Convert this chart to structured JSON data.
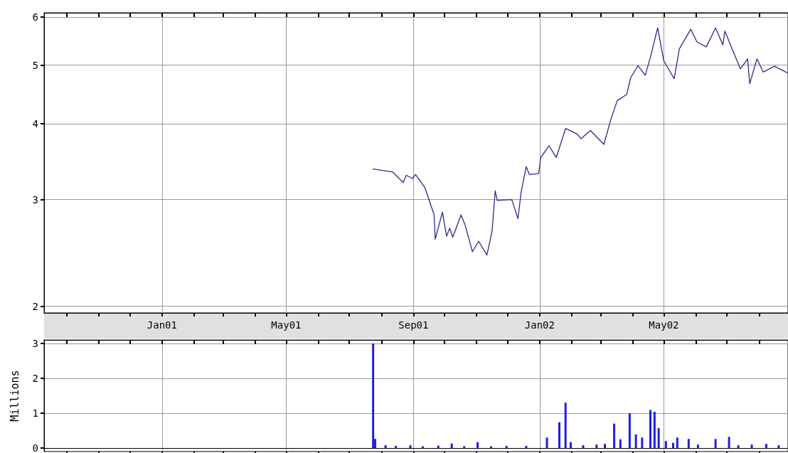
{
  "chart_data": [
    {
      "type": "line",
      "log": true,
      "grid": true,
      "marker": "none",
      "line_style": "solid",
      "xlim": [
        "2000-09-09",
        "2002-08-29"
      ],
      "ylim": [
        1.95,
        6.1
      ],
      "yticks": [
        2,
        3,
        4,
        5,
        6
      ],
      "xticks": [
        {
          "value": "2000-10-01",
          "label": null
        },
        {
          "value": "2000-11-01",
          "label": null
        },
        {
          "value": "2000-12-01",
          "label": null
        },
        {
          "value": "2001-01-01",
          "label": "Jan01"
        },
        {
          "value": "2001-02-01",
          "label": null
        },
        {
          "value": "2001-03-01",
          "label": null
        },
        {
          "value": "2001-04-01",
          "label": null
        },
        {
          "value": "2001-05-01",
          "label": "May01"
        },
        {
          "value": "2001-06-01",
          "label": null
        },
        {
          "value": "2001-07-01",
          "label": null
        },
        {
          "value": "2001-08-01",
          "label": null
        },
        {
          "value": "2001-09-01",
          "label": "Sep01"
        },
        {
          "value": "2001-10-01",
          "label": null
        },
        {
          "value": "2001-11-01",
          "label": null
        },
        {
          "value": "2001-12-01",
          "label": null
        },
        {
          "value": "2002-01-01",
          "label": "Jan02"
        },
        {
          "value": "2002-02-01",
          "label": null
        },
        {
          "value": "2002-03-01",
          "label": null
        },
        {
          "value": "2002-04-01",
          "label": null
        },
        {
          "value": "2002-05-01",
          "label": "May02"
        },
        {
          "value": "2002-06-01",
          "label": null
        },
        {
          "value": "2002-07-01",
          "label": null
        },
        {
          "value": "2002-08-01",
          "label": null
        }
      ],
      "x": [
        "2001-07-24",
        "2001-08-12",
        "2001-08-22",
        "2001-08-25",
        "2001-08-31",
        "2001-09-03",
        "2001-09-12",
        "2001-09-21",
        "2001-09-22",
        "2001-09-29",
        "2001-10-03",
        "2001-10-06",
        "2001-10-09",
        "2001-10-17",
        "2001-10-21",
        "2001-10-28",
        "2001-11-03",
        "2001-11-11",
        "2001-11-16",
        "2001-11-19",
        "2001-11-21",
        "2001-12-05",
        "2001-12-11",
        "2001-12-14",
        "2001-12-19",
        "2001-12-22",
        "2001-12-31",
        "2002-01-02",
        "2002-01-10",
        "2002-01-17",
        "2002-01-26",
        "2002-02-06",
        "2002-02-10",
        "2002-02-19",
        "2002-03-04",
        "2002-03-11",
        "2002-03-17",
        "2002-03-26",
        "2002-03-30",
        "2002-04-06",
        "2002-04-13",
        "2002-04-18",
        "2002-04-25",
        "2002-05-01",
        "2002-05-11",
        "2002-05-16",
        "2002-05-27",
        "2002-06-02",
        "2002-06-11",
        "2002-06-20",
        "2002-06-27",
        "2002-06-29",
        "2002-07-08",
        "2002-07-14",
        "2002-07-21",
        "2002-07-23",
        "2002-07-30",
        "2002-08-05",
        "2002-08-16",
        "2002-08-28"
      ],
      "series": [
        {
          "color": "#2b2b8c",
          "values": [
            3.37,
            3.33,
            3.2,
            3.29,
            3.25,
            3.3,
            3.14,
            2.83,
            2.58,
            2.86,
            2.61,
            2.69,
            2.6,
            2.83,
            2.72,
            2.46,
            2.56,
            2.43,
            2.66,
            3.1,
            2.99,
            3.0,
            2.79,
            3.08,
            3.4,
            3.3,
            3.31,
            3.52,
            3.68,
            3.52,
            3.93,
            3.85,
            3.78,
            3.9,
            3.7,
            4.08,
            4.37,
            4.47,
            4.77,
            4.99,
            4.81,
            5.15,
            5.76,
            5.08,
            4.75,
            5.32,
            5.73,
            5.46,
            5.36,
            5.76,
            5.4,
            5.69,
            5.22,
            4.93,
            5.12,
            4.66,
            5.12,
            4.87,
            4.98,
            4.86
          ]
        }
      ]
    },
    {
      "type": "bar",
      "grid": true,
      "tick_labels": "y",
      "ylabel": "Millions",
      "xlim": [
        "2000-09-09",
        "2002-08-29"
      ],
      "ylim": [
        -0.1,
        3.1
      ],
      "yticks": [
        0,
        1,
        2,
        3
      ],
      "xticks": [
        {
          "value": "2000-10-01",
          "label": null
        },
        {
          "value": "2000-11-01",
          "label": null
        },
        {
          "value": "2000-12-01",
          "label": null
        },
        {
          "value": "2001-01-01",
          "label": null
        },
        {
          "value": "2001-02-01",
          "label": null
        },
        {
          "value": "2001-03-01",
          "label": null
        },
        {
          "value": "2001-04-01",
          "label": null
        },
        {
          "value": "2001-05-01",
          "label": null
        },
        {
          "value": "2001-06-01",
          "label": null
        },
        {
          "value": "2001-07-01",
          "label": null
        },
        {
          "value": "2001-08-01",
          "label": null
        },
        {
          "value": "2001-09-01",
          "label": null
        },
        {
          "value": "2001-10-01",
          "label": null
        },
        {
          "value": "2001-11-01",
          "label": null
        },
        {
          "value": "2001-12-01",
          "label": null
        },
        {
          "value": "2002-01-01",
          "label": null
        },
        {
          "value": "2002-02-01",
          "label": null
        },
        {
          "value": "2002-03-01",
          "label": null
        },
        {
          "value": "2002-04-01",
          "label": null
        },
        {
          "value": "2002-05-01",
          "label": null
        },
        {
          "value": "2002-06-01",
          "label": null
        },
        {
          "value": "2002-07-01",
          "label": null
        },
        {
          "value": "2002-08-01",
          "label": null
        }
      ],
      "x": [
        "2001-07-24",
        "2001-07-26",
        "2001-08-05",
        "2001-08-15",
        "2001-08-29",
        "2001-09-10",
        "2001-09-25",
        "2001-10-08",
        "2001-10-20",
        "2001-11-02",
        "2001-11-15",
        "2001-11-30",
        "2001-12-19",
        "2002-01-08",
        "2002-01-20",
        "2002-01-26",
        "2002-01-31",
        "2002-02-12",
        "2002-02-25",
        "2002-03-05",
        "2002-03-14",
        "2002-03-20",
        "2002-03-29",
        "2002-04-04",
        "2002-04-10",
        "2002-04-18",
        "2002-04-22",
        "2002-04-26",
        "2002-05-03",
        "2002-05-10",
        "2002-05-14",
        "2002-05-25",
        "2002-06-03",
        "2002-06-20",
        "2002-07-03",
        "2002-07-12",
        "2002-07-25",
        "2002-08-08",
        "2002-08-20"
      ],
      "series": [
        {
          "color": "#1f1fe0",
          "values": [
            3.0,
            0.26,
            0.08,
            0.06,
            0.08,
            0.05,
            0.07,
            0.13,
            0.05,
            0.17,
            0.05,
            0.06,
            0.06,
            0.3,
            0.74,
            1.3,
            0.17,
            0.08,
            0.1,
            0.12,
            0.7,
            0.25,
            1.0,
            0.39,
            0.3,
            1.09,
            1.04,
            0.57,
            0.2,
            0.15,
            0.3,
            0.26,
            0.1,
            0.26,
            0.32,
            0.08,
            0.1,
            0.12,
            0.08
          ]
        }
      ]
    }
  ]
}
